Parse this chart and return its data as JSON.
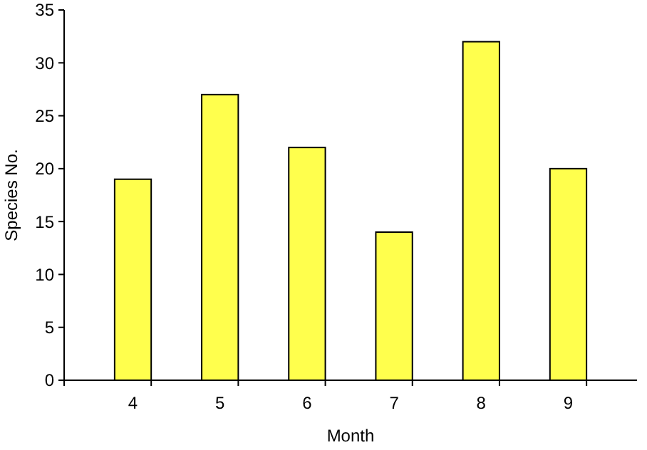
{
  "chart_data": {
    "type": "bar",
    "xlabel": "Month",
    "ylabel": "Species No.",
    "categories": [
      "4",
      "5",
      "6",
      "7",
      "8",
      "9"
    ],
    "values": [
      19,
      27,
      22,
      14,
      32,
      20
    ],
    "color": "#ffff4d",
    "ylim": [
      0,
      35
    ],
    "yticks": [
      0,
      5,
      10,
      15,
      20,
      25,
      30,
      35
    ],
    "grid": false
  }
}
